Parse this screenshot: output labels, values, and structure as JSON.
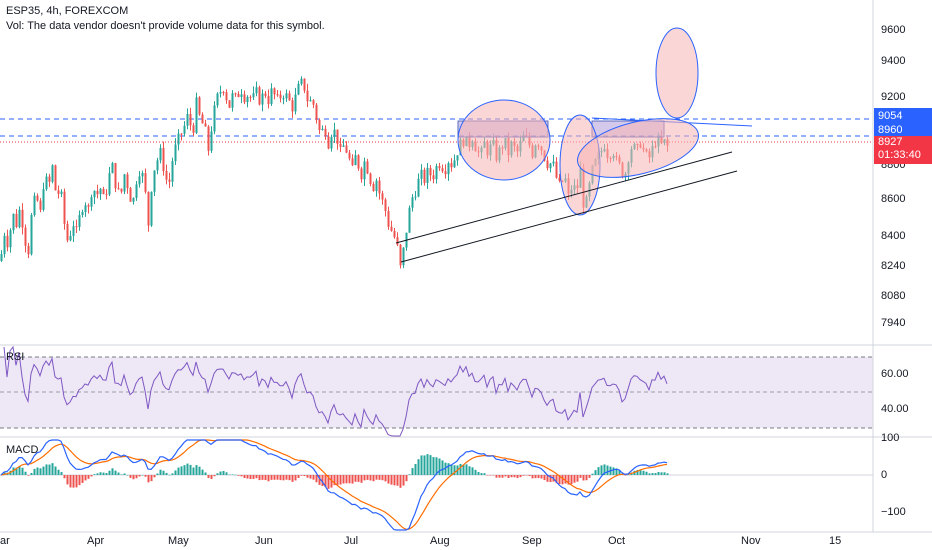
{
  "header": {
    "symbol_line": "ESP35, 4h, FOREXCOM",
    "volume_note": "Vol: The data vendor doesn't provide volume data for this symbol."
  },
  "price_axis": {
    "ticks": [
      "9600",
      "9400",
      "9200",
      "8800",
      "8600",
      "8400",
      "8240",
      "8080",
      "7940"
    ],
    "tag_upper": "9054",
    "tag_lower": "8960",
    "tag_last": "8927",
    "tag_countdown": "01:33:40"
  },
  "rsi_pane": {
    "label": "RSI",
    "ticks": [
      "60.00",
      "40.00"
    ]
  },
  "macd_pane": {
    "label": "MACD",
    "ticks": [
      "100",
      "0",
      "−100"
    ]
  },
  "time_axis": {
    "labels": [
      "ar",
      "Apr",
      "May",
      "Jun",
      "Jul",
      "Aug",
      "Sep",
      "Oct",
      "Nov",
      "15"
    ]
  },
  "colors": {
    "up": "#26a69a",
    "down": "#ef5350",
    "dash_blue": "#2962ff",
    "rsi_line": "#7e57c2",
    "macd_line": "#2962ff",
    "signal_line": "#ff6d00",
    "last_price": "#f23645"
  },
  "chart_data": {
    "type": "candlestick",
    "interval": "4h",
    "symbol": "ESP35",
    "y_range": [
      7850,
      9700
    ],
    "close_path": [
      [
        0,
        8290
      ],
      [
        4,
        8450
      ],
      [
        8,
        8380
      ],
      [
        12,
        8560
      ],
      [
        16,
        8500
      ],
      [
        20,
        8600
      ],
      [
        24,
        8420
      ],
      [
        28,
        8350
      ],
      [
        32,
        8600
      ],
      [
        36,
        8650
      ],
      [
        40,
        8560
      ],
      [
        44,
        8780
      ],
      [
        48,
        8700
      ],
      [
        52,
        8820
      ],
      [
        56,
        8650
      ],
      [
        60,
        8700
      ],
      [
        64,
        8500
      ],
      [
        68,
        8380
      ],
      [
        72,
        8520
      ],
      [
        76,
        8450
      ],
      [
        80,
        8560
      ],
      [
        84,
        8640
      ],
      [
        88,
        8580
      ],
      [
        92,
        8720
      ],
      [
        96,
        8660
      ],
      [
        100,
        8700
      ],
      [
        104,
        8620
      ],
      [
        108,
        8760
      ],
      [
        112,
        8820
      ],
      [
        116,
        8700
      ],
      [
        120,
        8650
      ],
      [
        124,
        8780
      ],
      [
        128,
        8700
      ],
      [
        132,
        8600
      ],
      [
        136,
        8750
      ],
      [
        140,
        8820
      ],
      [
        144,
        8720
      ],
      [
        148,
        8500
      ],
      [
        152,
        8780
      ],
      [
        156,
        8850
      ],
      [
        160,
        8900
      ],
      [
        164,
        8800
      ],
      [
        168,
        8700
      ],
      [
        172,
        8860
      ],
      [
        176,
        8950
      ],
      [
        180,
        9000
      ],
      [
        184,
        9050
      ],
      [
        188,
        9120
      ],
      [
        192,
        9000
      ],
      [
        196,
        9180
      ],
      [
        200,
        9080
      ],
      [
        204,
        9050
      ],
      [
        208,
        8920
      ],
      [
        212,
        9080
      ],
      [
        216,
        9200
      ],
      [
        220,
        9250
      ],
      [
        224,
        9280
      ],
      [
        228,
        9150
      ],
      [
        232,
        9220
      ],
      [
        236,
        9200
      ],
      [
        240,
        9270
      ],
      [
        244,
        9220
      ],
      [
        248,
        9230
      ],
      [
        252,
        9200
      ],
      [
        256,
        9240
      ],
      [
        260,
        9190
      ],
      [
        264,
        9250
      ],
      [
        268,
        9200
      ],
      [
        272,
        9260
      ],
      [
        276,
        9190
      ],
      [
        280,
        9220
      ],
      [
        284,
        9240
      ],
      [
        288,
        9200
      ],
      [
        292,
        9160
      ],
      [
        296,
        9230
      ],
      [
        300,
        9300
      ],
      [
        304,
        9270
      ],
      [
        308,
        9180
      ],
      [
        312,
        9200
      ],
      [
        316,
        9100
      ],
      [
        320,
        9000
      ],
      [
        324,
        9050
      ],
      [
        328,
        8960
      ],
      [
        332,
        9040
      ],
      [
        336,
        9000
      ],
      [
        340,
        8900
      ],
      [
        344,
        8950
      ],
      [
        348,
        8880
      ],
      [
        352,
        8800
      ],
      [
        356,
        8900
      ],
      [
        360,
        8760
      ],
      [
        364,
        8850
      ],
      [
        368,
        8800
      ],
      [
        372,
        8700
      ],
      [
        376,
        8750
      ],
      [
        380,
        8650
      ],
      [
        384,
        8600
      ],
      [
        388,
        8500
      ],
      [
        392,
        8450
      ],
      [
        396,
        8400
      ],
      [
        400,
        8250
      ],
      [
        404,
        8380
      ],
      [
        408,
        8550
      ],
      [
        412,
        8650
      ],
      [
        416,
        8700
      ],
      [
        420,
        8780
      ],
      [
        424,
        8750
      ],
      [
        428,
        8800
      ],
      [
        432,
        8760
      ],
      [
        436,
        8820
      ],
      [
        440,
        8850
      ],
      [
        444,
        8800
      ],
      [
        448,
        8860
      ],
      [
        452,
        8830
      ],
      [
        456,
        8900
      ],
      [
        460,
        8950
      ],
      [
        464,
        8980
      ],
      [
        468,
        8940
      ],
      [
        472,
        8990
      ],
      [
        476,
        8920
      ],
      [
        480,
        8880
      ],
      [
        484,
        8950
      ],
      [
        488,
        8900
      ],
      [
        492,
        8960
      ],
      [
        496,
        8880
      ],
      [
        500,
        8920
      ],
      [
        504,
        8970
      ],
      [
        508,
        8900
      ],
      [
        512,
        8960
      ],
      [
        516,
        8890
      ],
      [
        520,
        8950
      ],
      [
        524,
        9000
      ],
      [
        528,
        8960
      ],
      [
        532,
        8900
      ],
      [
        536,
        8980
      ],
      [
        540,
        8940
      ],
      [
        544,
        8880
      ],
      [
        548,
        8830
      ],
      [
        552,
        8850
      ],
      [
        556,
        8760
      ],
      [
        560,
        8700
      ],
      [
        564,
        8780
      ],
      [
        568,
        8650
      ],
      [
        572,
        8720
      ],
      [
        576,
        8680
      ],
      [
        580,
        8800
      ],
      [
        584,
        8560
      ],
      [
        588,
        8680
      ],
      [
        592,
        8800
      ],
      [
        596,
        8860
      ],
      [
        600,
        8900
      ],
      [
        604,
        8950
      ],
      [
        608,
        8880
      ],
      [
        612,
        8930
      ],
      [
        616,
        8850
      ],
      [
        620,
        8820
      ],
      [
        624,
        8760
      ],
      [
        628,
        8880
      ],
      [
        632,
        8950
      ],
      [
        636,
        8900
      ],
      [
        640,
        8960
      ],
      [
        644,
        8900
      ],
      [
        648,
        8860
      ],
      [
        652,
        8920
      ],
      [
        656,
        8980
      ],
      [
        660,
        8940
      ],
      [
        664,
        8960
      ],
      [
        668,
        8927
      ]
    ]
  }
}
